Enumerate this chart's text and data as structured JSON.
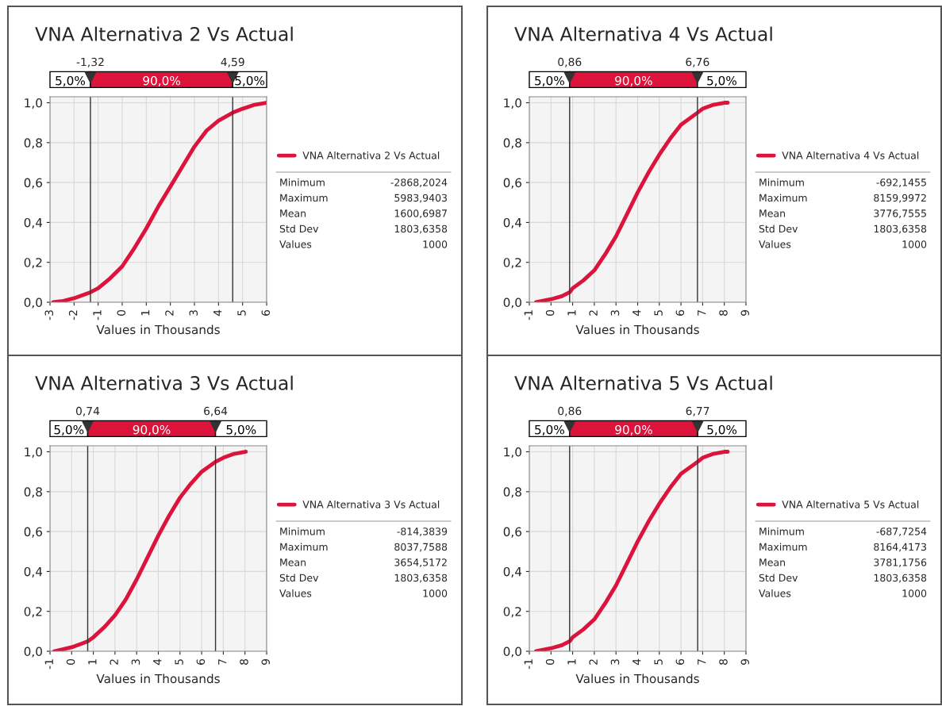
{
  "chart_data": [
    {
      "type": "line",
      "title": "VNA Alternativa 2 Vs Actual",
      "xlabel": "Values in Thousands",
      "legend": "right",
      "grid": true,
      "marker": "none",
      "line_style": "solid",
      "series": [
        {
          "name": "VNA Alternativa 2 Vs Actual",
          "color": "#dc143c",
          "x": [
            -2.87,
            -2.5,
            -2,
            -1.32,
            -1,
            -0.5,
            0,
            0.5,
            1,
            1.5,
            2,
            2.5,
            3,
            3.5,
            4,
            4.59,
            5,
            5.5,
            5.98
          ],
          "values": [
            0,
            0.005,
            0.02,
            0.05,
            0.07,
            0.12,
            0.18,
            0.27,
            0.37,
            0.48,
            0.58,
            0.68,
            0.78,
            0.86,
            0.91,
            0.95,
            0.97,
            0.99,
            1.0
          ]
        }
      ],
      "xlim": [
        -3,
        6
      ],
      "xticks": [
        -3,
        -2,
        -1,
        0,
        1,
        2,
        3,
        4,
        5,
        6
      ],
      "ylim": [
        0,
        1.03
      ],
      "yticks": [
        {
          "value": 0,
          "label": "0,0"
        },
        {
          "value": 0.2,
          "label": "0,2"
        },
        {
          "value": 0.4,
          "label": "0,4"
        },
        {
          "value": 0.6,
          "label": "0,6"
        },
        {
          "value": 0.8,
          "label": "0,8"
        },
        {
          "value": 1.0,
          "label": "1,0"
        }
      ],
      "ref_lines": [
        {
          "axis": "x",
          "value": -1.32,
          "label": "-1,32"
        },
        {
          "axis": "x",
          "value": 4.59,
          "label": "4,59"
        }
      ],
      "annotations": [
        "5,0%",
        "90,0%",
        "5,0%",
        "Minimum",
        "-2868,2024",
        "Maximum",
        "5983,9403",
        "Mean",
        "1600,6987",
        "Std Dev",
        "1803,6358",
        "Values",
        "1000"
      ]
    },
    {
      "type": "line",
      "title": "VNA Alternativa 4 Vs Actual",
      "xlabel": "Values in Thousands",
      "legend": "right",
      "grid": true,
      "marker": "none",
      "line_style": "solid",
      "series": [
        {
          "name": "VNA Alternativa 4 Vs Actual",
          "color": "#dc143c",
          "x": [
            -0.69,
            0,
            0.5,
            0.86,
            1,
            1.5,
            2,
            2.5,
            3,
            3.5,
            4,
            4.5,
            5,
            5.5,
            6,
            6.76,
            7,
            7.5,
            8,
            8.16
          ],
          "values": [
            0,
            0.015,
            0.03,
            0.05,
            0.07,
            0.11,
            0.16,
            0.24,
            0.33,
            0.44,
            0.55,
            0.65,
            0.74,
            0.82,
            0.89,
            0.95,
            0.97,
            0.99,
            1.0,
            1.0
          ]
        }
      ],
      "xlim": [
        -1,
        9
      ],
      "xticks": [
        -1,
        0,
        1,
        2,
        3,
        4,
        5,
        6,
        7,
        8,
        9
      ],
      "ylim": [
        0,
        1.03
      ],
      "yticks": [
        {
          "value": 0,
          "label": "0,0"
        },
        {
          "value": 0.2,
          "label": "0,2"
        },
        {
          "value": 0.4,
          "label": "0,4"
        },
        {
          "value": 0.6,
          "label": "0,6"
        },
        {
          "value": 0.8,
          "label": "0,8"
        },
        {
          "value": 1.0,
          "label": "1,0"
        }
      ],
      "ref_lines": [
        {
          "axis": "x",
          "value": 0.86,
          "label": "0,86"
        },
        {
          "axis": "x",
          "value": 6.76,
          "label": "6,76"
        }
      ],
      "annotations": [
        "5,0%",
        "90,0%",
        "5,0%",
        "Minimum",
        "-692,1455",
        "Maximum",
        "8159,9972",
        "Mean",
        "3776,7555",
        "Std Dev",
        "1803,6358",
        "Values",
        "1000"
      ]
    },
    {
      "type": "line",
      "title": "VNA Alternativa 3 Vs Actual",
      "xlabel": "Values in Thousands",
      "legend": "right",
      "grid": true,
      "marker": "none",
      "line_style": "solid",
      "series": [
        {
          "name": "VNA Alternativa 3 Vs Actual",
          "color": "#dc143c",
          "x": [
            -0.81,
            0,
            0.5,
            0.74,
            1,
            1.5,
            2,
            2.5,
            3,
            3.5,
            4,
            4.5,
            5,
            5.5,
            6,
            6.64,
            7,
            7.5,
            8,
            8.04
          ],
          "values": [
            0,
            0.02,
            0.04,
            0.05,
            0.07,
            0.12,
            0.18,
            0.26,
            0.36,
            0.47,
            0.58,
            0.68,
            0.77,
            0.84,
            0.9,
            0.95,
            0.97,
            0.99,
            1.0,
            1.0
          ]
        }
      ],
      "xlim": [
        -1,
        9
      ],
      "xticks": [
        -1,
        0,
        1,
        2,
        3,
        4,
        5,
        6,
        7,
        8,
        9
      ],
      "ylim": [
        0,
        1.03
      ],
      "yticks": [
        {
          "value": 0,
          "label": "0,0"
        },
        {
          "value": 0.2,
          "label": "0,2"
        },
        {
          "value": 0.4,
          "label": "0,4"
        },
        {
          "value": 0.6,
          "label": "0,6"
        },
        {
          "value": 0.8,
          "label": "0,8"
        },
        {
          "value": 1.0,
          "label": "1,0"
        }
      ],
      "ref_lines": [
        {
          "axis": "x",
          "value": 0.74,
          "label": "0,74"
        },
        {
          "axis": "x",
          "value": 6.64,
          "label": "6,64"
        }
      ],
      "annotations": [
        "5,0%",
        "90,0%",
        "5,0%",
        "Minimum",
        "-814,3839",
        "Maximum",
        "8037,7588",
        "Mean",
        "3654,5172",
        "Std Dev",
        "1803,6358",
        "Values",
        "1000"
      ]
    },
    {
      "type": "line",
      "title": "VNA Alternativa 5 Vs Actual",
      "xlabel": "Values in Thousands",
      "legend": "right",
      "grid": true,
      "marker": "none",
      "line_style": "solid",
      "series": [
        {
          "name": "VNA Alternativa 5 Vs Actual",
          "color": "#dc143c",
          "x": [
            -0.69,
            0,
            0.5,
            0.86,
            1,
            1.5,
            2,
            2.5,
            3,
            3.5,
            4,
            4.5,
            5,
            5.5,
            6,
            6.77,
            7,
            7.5,
            8,
            8.16
          ],
          "values": [
            0,
            0.015,
            0.03,
            0.05,
            0.07,
            0.11,
            0.16,
            0.24,
            0.33,
            0.44,
            0.55,
            0.65,
            0.74,
            0.82,
            0.89,
            0.95,
            0.97,
            0.99,
            1.0,
            1.0
          ]
        }
      ],
      "xlim": [
        -1,
        9
      ],
      "xticks": [
        -1,
        0,
        1,
        2,
        3,
        4,
        5,
        6,
        7,
        8,
        9
      ],
      "ylim": [
        0,
        1.03
      ],
      "yticks": [
        {
          "value": 0,
          "label": "0,0"
        },
        {
          "value": 0.2,
          "label": "0,2"
        },
        {
          "value": 0.4,
          "label": "0,4"
        },
        {
          "value": 0.6,
          "label": "0,6"
        },
        {
          "value": 0.8,
          "label": "0,8"
        },
        {
          "value": 1.0,
          "label": "1,0"
        }
      ],
      "ref_lines": [
        {
          "axis": "x",
          "value": 0.86,
          "label": "0,86"
        },
        {
          "axis": "x",
          "value": 6.77,
          "label": "6,77"
        }
      ],
      "annotations": [
        "5,0%",
        "90,0%",
        "5,0%",
        "Minimum",
        "-687,7254",
        "Maximum",
        "8164,4173",
        "Mean",
        "3781,1756",
        "Std Dev",
        "1803,6358",
        "Values",
        "1000"
      ]
    }
  ]
}
